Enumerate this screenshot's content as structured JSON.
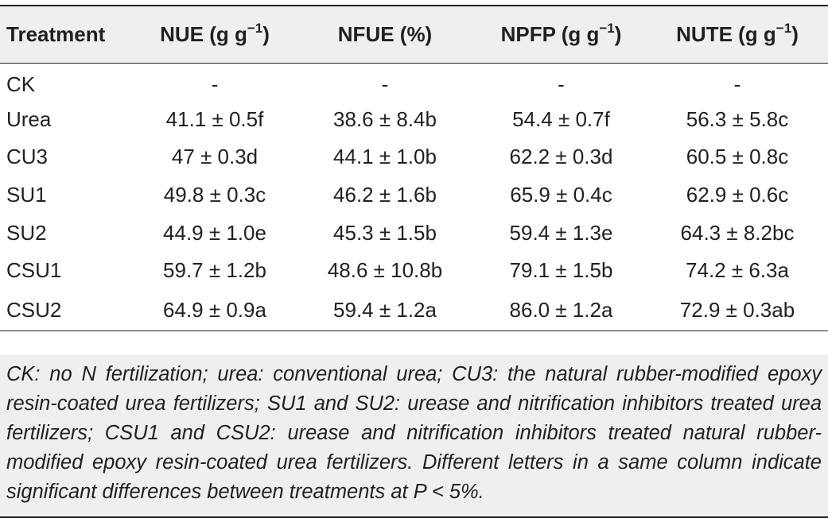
{
  "table": {
    "headers": [
      {
        "label": "Treatment",
        "unit_pre": "",
        "unit_sup": "",
        "unit_post": ""
      },
      {
        "label": "NUE (g g",
        "unit_sup": "−1",
        "unit_post": ")"
      },
      {
        "label": "NFUE (%)",
        "unit_sup": "",
        "unit_post": ""
      },
      {
        "label": "NPFP (g g",
        "unit_sup": "−1",
        "unit_post": ")"
      },
      {
        "label": "NUTE (g g",
        "unit_sup": "−1",
        "unit_post": ")"
      }
    ],
    "rows": [
      {
        "treatment": "CK",
        "nue": "-",
        "nfue": "-",
        "npfp": "-",
        "nute": "-"
      },
      {
        "treatment": "Urea",
        "nue": "41.1 ± 0.5f",
        "nfue": "38.6 ± 8.4b",
        "npfp": "54.4 ± 0.7f",
        "nute": "56.3 ± 5.8c"
      },
      {
        "treatment": "CU3",
        "nue": "47 ± 0.3d",
        "nfue": "44.1 ± 1.0b",
        "npfp": "62.2 ± 0.3d",
        "nute": "60.5 ± 0.8c"
      },
      {
        "treatment": "SU1",
        "nue": "49.8 ± 0.3c",
        "nfue": "46.2 ± 1.6b",
        "npfp": "65.9 ± 0.4c",
        "nute": "62.9 ± 0.6c"
      },
      {
        "treatment": "SU2",
        "nue": "44.9 ± 1.0e",
        "nfue": "45.3 ± 1.5b",
        "npfp": "59.4 ± 1.3e",
        "nute": "64.3 ± 8.2bc"
      },
      {
        "treatment": "CSU1",
        "nue": "59.7 ± 1.2b",
        "nfue": "48.6 ± 10.8b",
        "npfp": "79.1 ± 1.5b",
        "nute": "74.2 ± 6.3a"
      },
      {
        "treatment": "CSU2",
        "nue": "64.9 ± 0.9a",
        "nfue": "59.4 ± 1.2a",
        "npfp": "86.0 ± 1.2a",
        "nute": "72.9 ± 0.3ab"
      }
    ]
  },
  "footnote": "CK: no N fertilization; urea: conventional urea; CU3: the natural rubber-modified epoxy resin-coated urea fertilizers; SU1 and SU2: urease and nitrification inhibitors treated urea fertilizers; CSU1 and CSU2: urease and nitrification inhibitors treated natural rubber-modified epoxy resin-coated urea fertilizers. Different letters in a same column indicate significant differences between treatments at P < 5%.",
  "colors": {
    "header_background": "#efefef",
    "text": "#231f20",
    "rule": "#231f20"
  }
}
